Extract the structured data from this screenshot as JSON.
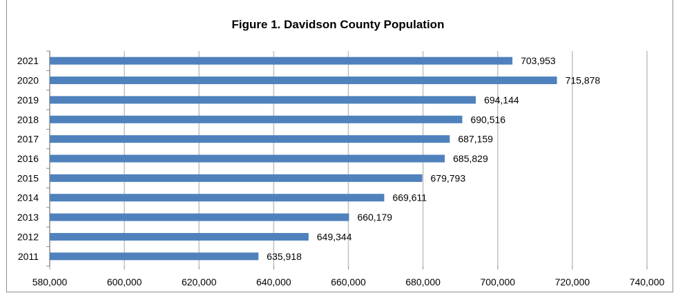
{
  "chart_data": {
    "type": "bar",
    "orientation": "horizontal",
    "title": "Figure 1. Davidson County Population",
    "categories": [
      "2021",
      "2020",
      "2019",
      "2018",
      "2017",
      "2016",
      "2015",
      "2014",
      "2013",
      "2012",
      "2011"
    ],
    "values": [
      703953,
      715878,
      694144,
      690516,
      687159,
      685829,
      679793,
      669611,
      660179,
      649344,
      635918
    ],
    "data_labels": [
      "703,953",
      "715,878",
      "694,144",
      "690,516",
      "687,159",
      "685,829",
      "679,793",
      "669,611",
      "660,179",
      "649,344",
      "635,918"
    ],
    "xlim": [
      580000,
      740000
    ],
    "xticks": [
      580000,
      600000,
      620000,
      640000,
      660000,
      680000,
      700000,
      720000,
      740000
    ],
    "xtick_labels": [
      "580,000",
      "600,000",
      "620,000",
      "640,000",
      "660,000",
      "680,000",
      "700,000",
      "720,000",
      "740,000"
    ],
    "xlabel": "",
    "ylabel": "",
    "grid": "vertical",
    "legend": "none",
    "bar_color": "#4f81bd",
    "grid_color": "#c0c0c0"
  }
}
